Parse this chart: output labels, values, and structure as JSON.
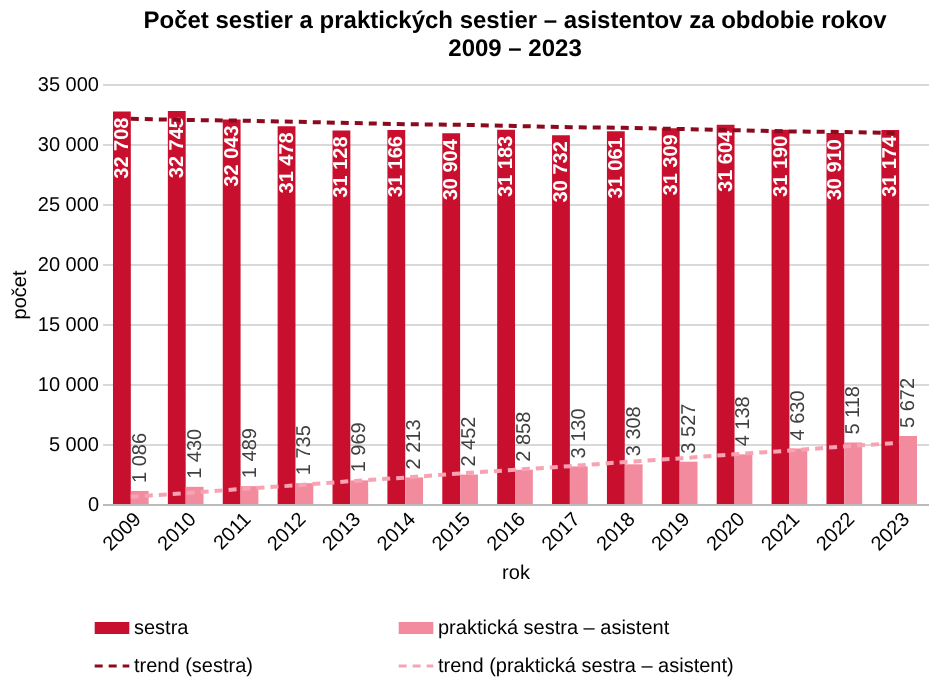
{
  "chart_data": {
    "type": "bar",
    "title": "Počet sestier a praktických sestier – asistentov za obdobie rokov\n2009 – 2023",
    "xlabel": "rok",
    "ylabel": "počet",
    "categories": [
      "2009",
      "2010",
      "2011",
      "2012",
      "2013",
      "2014",
      "2015",
      "2016",
      "2017",
      "2018",
      "2019",
      "2020",
      "2021",
      "2022",
      "2023"
    ],
    "series": [
      {
        "name": "sestra",
        "color": "#c8102e",
        "values": [
          32708,
          32745,
          32043,
          31478,
          31128,
          31166,
          30904,
          31183,
          30732,
          31061,
          31309,
          31604,
          31190,
          30910,
          31174
        ],
        "value_labels": [
          "32 708",
          "32 745",
          "32 043",
          "31 478",
          "31 128",
          "31 166",
          "30 904",
          "31 183",
          "30 732",
          "31 061",
          "31 309",
          "31 604",
          "31 190",
          "30 910",
          "31 174"
        ]
      },
      {
        "name": "praktická sestra – asistent",
        "color": "#f28b9e",
        "values": [
          1086,
          1430,
          1489,
          1735,
          1969,
          2213,
          2452,
          2858,
          3130,
          3308,
          3527,
          4138,
          4630,
          5118,
          5672
        ],
        "value_labels": [
          "1 086",
          "1 430",
          "1 489",
          "1 735",
          "1 969",
          "2 213",
          "2 452",
          "2 858",
          "3 130",
          "3 308",
          "3 527",
          "4 138",
          "4 630",
          "5 118",
          "5 672"
        ]
      },
      {
        "name": "trend (sestra)",
        "type": "line",
        "line_style": "dashed",
        "color": "#8b0a1e",
        "values": [
          32100,
          32000,
          31950,
          31850,
          31750,
          31650,
          31600,
          31500,
          31400,
          31350,
          31250,
          31150,
          31050,
          31000,
          30900
        ]
      },
      {
        "name": "trend (praktická sestra – asistent)",
        "type": "line",
        "line_style": "dashed",
        "color": "#f7a3b3",
        "values": [
          600,
          900,
          1250,
          1550,
          1900,
          2200,
          2550,
          2850,
          3150,
          3500,
          3800,
          4150,
          4450,
          4800,
          5100
        ]
      }
    ],
    "ylim": [
      0,
      35000
    ],
    "yticks": [
      {
        "value": 0,
        "label": "0"
      },
      {
        "value": 5000,
        "label": "5 000"
      },
      {
        "value": 10000,
        "label": "10 000"
      },
      {
        "value": 15000,
        "label": "15 000"
      },
      {
        "value": 20000,
        "label": "20 000"
      },
      {
        "value": 25000,
        "label": "25 000"
      },
      {
        "value": 30000,
        "label": "30 000"
      },
      {
        "value": 35000,
        "label": "35 000"
      }
    ],
    "grid": "y",
    "legend": "bottom"
  }
}
